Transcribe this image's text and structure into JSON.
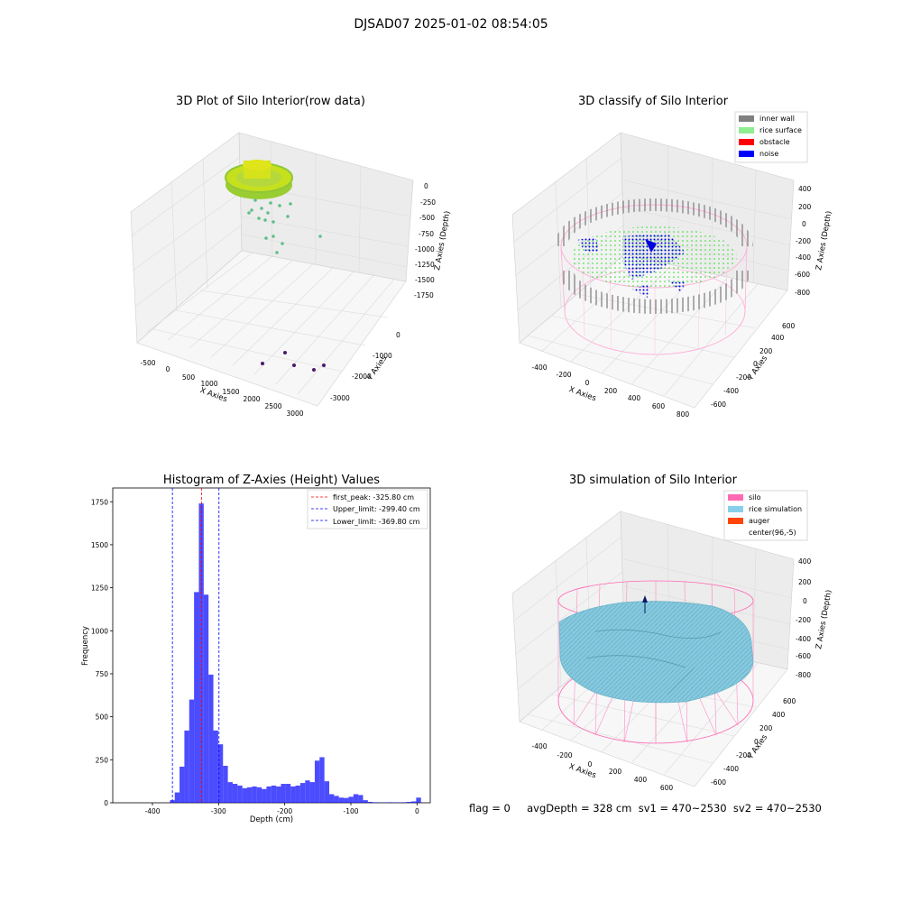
{
  "figure_title": "DJSAD07 2025-01-02 08:54:05",
  "footer": "flag = 0     avgDepth = 328 cm  sv1 = 470~2530  sv2 = 470~2530",
  "chart_data": [
    {
      "type": "scatter",
      "projection": "3d",
      "title": "3D Plot of Silo Interior(row data)",
      "xlabel": "X Axies",
      "ylabel": "Y Axies",
      "zlabel": "Z Axies (Depth)",
      "x_ticks": [
        "-500",
        "0",
        "500",
        "1000",
        "1500",
        "2000",
        "2500",
        "3000"
      ],
      "y_ticks": [
        "-3000",
        "-2000",
        "-1000",
        "0"
      ],
      "z_ticks": [
        "0",
        "-250",
        "-500",
        "-750",
        "-1000",
        "-1250",
        "-1500",
        "-1750"
      ],
      "grid": true
    },
    {
      "type": "scatter",
      "projection": "3d",
      "title": "3D classify of Silo Interior",
      "xlabel": "X Axies",
      "ylabel": "Y Axies",
      "zlabel": "Z Axies (Depth)",
      "x_ticks": [
        "-400",
        "-200",
        "0",
        "200",
        "400",
        "600",
        "800"
      ],
      "y_ticks": [
        "-600",
        "-400",
        "-200",
        "0",
        "200",
        "400",
        "600"
      ],
      "z_ticks": [
        "400",
        "200",
        "0",
        "-200",
        "-400",
        "-600",
        "-800"
      ],
      "legend": [
        {
          "label": "inner wall",
          "color": "#808080"
        },
        {
          "label": "rice surface",
          "color": "#90ee90"
        },
        {
          "label": "obstacle",
          "color": "#ff0000"
        },
        {
          "label": "noise",
          "color": "#0000ff"
        }
      ],
      "legend_position": "top-right",
      "grid": true
    },
    {
      "type": "bar",
      "title": "Histogram of Z-Axies (Height) Values",
      "xlabel": "Depth (cm)",
      "ylabel": "Frequency",
      "xlim": [
        -460,
        20
      ],
      "ylim": [
        0,
        1830
      ],
      "x_ticks": [
        -400,
        -300,
        -200,
        -100,
        0
      ],
      "y_ticks": [
        0,
        250,
        500,
        750,
        1000,
        1250,
        1500,
        1750
      ],
      "bar_color": "#0000ff",
      "bin_width": 7.3,
      "bins": [
        {
          "x": -373.6,
          "value": 15
        },
        {
          "x": -366.3,
          "value": 60
        },
        {
          "x": -359.0,
          "value": 210
        },
        {
          "x": -351.7,
          "value": 420
        },
        {
          "x": -344.4,
          "value": 600
        },
        {
          "x": -337.1,
          "value": 1225
        },
        {
          "x": -329.8,
          "value": 1740
        },
        {
          "x": -322.5,
          "value": 1210
        },
        {
          "x": -315.2,
          "value": 745
        },
        {
          "x": -307.9,
          "value": 420
        },
        {
          "x": -300.6,
          "value": 340
        },
        {
          "x": -293.3,
          "value": 215
        },
        {
          "x": -286.0,
          "value": 120
        },
        {
          "x": -278.7,
          "value": 110
        },
        {
          "x": -271.4,
          "value": 100
        },
        {
          "x": -264.1,
          "value": 85
        },
        {
          "x": -256.8,
          "value": 90
        },
        {
          "x": -249.5,
          "value": 95
        },
        {
          "x": -242.2,
          "value": 90
        },
        {
          "x": -234.9,
          "value": 80
        },
        {
          "x": -227.6,
          "value": 95
        },
        {
          "x": -220.3,
          "value": 100
        },
        {
          "x": -213.0,
          "value": 95
        },
        {
          "x": -205.7,
          "value": 110
        },
        {
          "x": -198.4,
          "value": 110
        },
        {
          "x": -191.1,
          "value": 95
        },
        {
          "x": -183.8,
          "value": 100
        },
        {
          "x": -176.5,
          "value": 115
        },
        {
          "x": -169.2,
          "value": 130
        },
        {
          "x": -161.9,
          "value": 120
        },
        {
          "x": -154.6,
          "value": 245
        },
        {
          "x": -147.3,
          "value": 265
        },
        {
          "x": -140.0,
          "value": 125
        },
        {
          "x": -132.7,
          "value": 50
        },
        {
          "x": -125.4,
          "value": 40
        },
        {
          "x": -118.1,
          "value": 30
        },
        {
          "x": -110.8,
          "value": 28
        },
        {
          "x": -103.5,
          "value": 35
        },
        {
          "x": -96.2,
          "value": 50
        },
        {
          "x": -88.9,
          "value": 45
        },
        {
          "x": -81.6,
          "value": 15
        },
        {
          "x": -74.3,
          "value": 5
        },
        {
          "x": -67.0,
          "value": 3
        },
        {
          "x": -59.7,
          "value": 2
        },
        {
          "x": -52.4,
          "value": 2
        },
        {
          "x": -45.1,
          "value": 3
        },
        {
          "x": -37.8,
          "value": 2
        },
        {
          "x": -30.5,
          "value": 2
        },
        {
          "x": -23.2,
          "value": 3
        },
        {
          "x": -15.9,
          "value": 5
        },
        {
          "x": -8.6,
          "value": 8
        },
        {
          "x": -1.3,
          "value": 30
        }
      ],
      "reference_lines": [
        {
          "label": "first_peak: -325.80 cm",
          "value": -325.8,
          "color": "#ff0000"
        },
        {
          "label": "Upper_limit: -299.40 cm",
          "value": -299.4,
          "color": "#0000ff"
        },
        {
          "label": "Lower_limit: -369.80 cm",
          "value": -369.8,
          "color": "#0000ff"
        }
      ],
      "legend_position": "top-right"
    },
    {
      "type": "scatter",
      "projection": "3d",
      "title": "3D simulation of Silo Interior",
      "xlabel": "X Axies",
      "ylabel": "Y Axies",
      "zlabel": "Z Axies (Depth)",
      "x_ticks": [
        "-400",
        "-200",
        "0",
        "200",
        "400",
        "600"
      ],
      "y_ticks": [
        "-600",
        "-400",
        "-200",
        "0",
        "200",
        "400",
        "600"
      ],
      "z_ticks": [
        "400",
        "200",
        "0",
        "-200",
        "-400",
        "-600",
        "-800"
      ],
      "legend": [
        {
          "label": "silo",
          "color": "#ff69b4"
        },
        {
          "label": "rice simulation",
          "color": "#87ceeb"
        },
        {
          "label": "auger",
          "color": "#ff4500"
        },
        {
          "label": "center(96,-5)",
          "color": "#ffffff"
        }
      ],
      "legend_position": "top-right",
      "grid": true
    }
  ]
}
